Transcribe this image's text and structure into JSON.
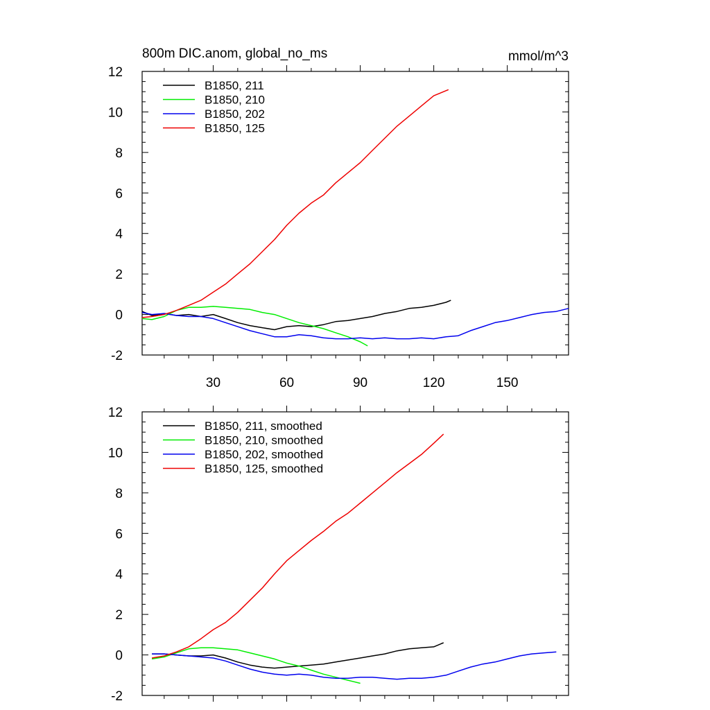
{
  "chart_data": [
    {
      "type": "line",
      "title_left": "800m DIC.anom, global_no_ms",
      "title_right": "mmol/m^3",
      "xlim": [
        1,
        175
      ],
      "ylim": [
        -2,
        12
      ],
      "xticks": [
        30,
        60,
        90,
        120,
        150
      ],
      "yticks": [
        -2,
        0,
        2,
        4,
        6,
        8,
        10,
        12
      ],
      "show_xtick_labels": true,
      "legend_position": "top-left",
      "series": [
        {
          "name": "B1850, 211",
          "color": "#000000",
          "x": [
            1,
            5,
            10,
            15,
            20,
            25,
            30,
            35,
            40,
            45,
            50,
            55,
            60,
            65,
            70,
            75,
            80,
            85,
            90,
            95,
            100,
            105,
            110,
            115,
            120,
            125,
            127
          ],
          "y": [
            0.15,
            -0.05,
            0.05,
            -0.05,
            0.0,
            -0.1,
            0.0,
            -0.2,
            -0.4,
            -0.55,
            -0.65,
            -0.75,
            -0.6,
            -0.55,
            -0.6,
            -0.5,
            -0.35,
            -0.3,
            -0.2,
            -0.1,
            0.05,
            0.15,
            0.3,
            0.35,
            0.45,
            0.6,
            0.7
          ]
        },
        {
          "name": "B1850, 210",
          "color": "#00ee00",
          "x": [
            1,
            5,
            10,
            15,
            20,
            25,
            30,
            35,
            40,
            45,
            50,
            55,
            60,
            65,
            70,
            75,
            80,
            85,
            90,
            93
          ],
          "y": [
            -0.2,
            -0.25,
            -0.1,
            0.2,
            0.35,
            0.35,
            0.4,
            0.35,
            0.3,
            0.25,
            0.1,
            0.0,
            -0.2,
            -0.4,
            -0.55,
            -0.7,
            -0.9,
            -1.1,
            -1.35,
            -1.55
          ]
        },
        {
          "name": "B1850, 202",
          "color": "#0000ee",
          "x": [
            1,
            5,
            10,
            15,
            20,
            25,
            30,
            35,
            40,
            45,
            50,
            55,
            60,
            65,
            70,
            75,
            80,
            85,
            90,
            95,
            100,
            105,
            110,
            115,
            120,
            125,
            130,
            135,
            140,
            145,
            150,
            155,
            160,
            165,
            170,
            175
          ],
          "y": [
            0.1,
            0.0,
            0.05,
            -0.05,
            -0.1,
            -0.1,
            -0.2,
            -0.4,
            -0.6,
            -0.8,
            -0.95,
            -1.1,
            -1.1,
            -1.0,
            -1.05,
            -1.15,
            -1.2,
            -1.2,
            -1.15,
            -1.2,
            -1.15,
            -1.2,
            -1.2,
            -1.15,
            -1.2,
            -1.1,
            -1.05,
            -0.8,
            -0.6,
            -0.4,
            -0.3,
            -0.15,
            0.0,
            0.1,
            0.15,
            0.3
          ]
        },
        {
          "name": "B1850, 125",
          "color": "#ee0000",
          "x": [
            1,
            5,
            10,
            15,
            20,
            25,
            30,
            35,
            40,
            45,
            50,
            55,
            60,
            65,
            70,
            75,
            80,
            85,
            90,
            95,
            100,
            105,
            110,
            115,
            120,
            126
          ],
          "y": [
            -0.15,
            -0.1,
            0.0,
            0.2,
            0.45,
            0.7,
            1.1,
            1.5,
            2.0,
            2.5,
            3.1,
            3.7,
            4.4,
            5.0,
            5.5,
            5.9,
            6.5,
            7.0,
            7.5,
            8.1,
            8.7,
            9.3,
            9.8,
            10.3,
            10.8,
            11.1
          ]
        }
      ]
    },
    {
      "type": "line",
      "xlim": [
        1,
        175
      ],
      "ylim": [
        -2,
        12
      ],
      "xticks": [
        30,
        60,
        90,
        120,
        150
      ],
      "yticks": [
        -2,
        0,
        2,
        4,
        6,
        8,
        10,
        12
      ],
      "show_xtick_labels": false,
      "legend_position": "top-left",
      "series": [
        {
          "name": "B1850, 211, smoothed",
          "color": "#000000",
          "x": [
            5,
            10,
            15,
            20,
            25,
            30,
            35,
            40,
            45,
            50,
            55,
            60,
            65,
            70,
            75,
            80,
            85,
            90,
            95,
            100,
            105,
            110,
            115,
            120,
            124
          ],
          "y": [
            0.05,
            0.05,
            0.0,
            -0.05,
            -0.05,
            0.0,
            -0.15,
            -0.35,
            -0.5,
            -0.6,
            -0.65,
            -0.6,
            -0.55,
            -0.5,
            -0.45,
            -0.35,
            -0.25,
            -0.15,
            -0.05,
            0.05,
            0.2,
            0.3,
            0.35,
            0.4,
            0.6
          ]
        },
        {
          "name": "B1850, 210, smoothed",
          "color": "#00ee00",
          "x": [
            5,
            10,
            15,
            20,
            25,
            30,
            35,
            40,
            45,
            50,
            55,
            60,
            65,
            70,
            75,
            80,
            85,
            90
          ],
          "y": [
            -0.2,
            -0.1,
            0.1,
            0.3,
            0.35,
            0.35,
            0.3,
            0.25,
            0.1,
            -0.05,
            -0.2,
            -0.4,
            -0.55,
            -0.75,
            -0.95,
            -1.1,
            -1.25,
            -1.4
          ]
        },
        {
          "name": "B1850, 202, smoothed",
          "color": "#0000ee",
          "x": [
            5,
            10,
            15,
            20,
            25,
            30,
            35,
            40,
            45,
            50,
            55,
            60,
            65,
            70,
            75,
            80,
            85,
            90,
            95,
            100,
            105,
            110,
            115,
            120,
            125,
            130,
            135,
            140,
            145,
            150,
            155,
            160,
            165,
            170
          ],
          "y": [
            0.05,
            0.05,
            0.0,
            -0.05,
            -0.1,
            -0.15,
            -0.3,
            -0.5,
            -0.7,
            -0.85,
            -0.95,
            -1.0,
            -0.95,
            -1.0,
            -1.1,
            -1.15,
            -1.15,
            -1.1,
            -1.1,
            -1.15,
            -1.2,
            -1.15,
            -1.15,
            -1.1,
            -1.0,
            -0.8,
            -0.6,
            -0.45,
            -0.35,
            -0.2,
            -0.05,
            0.05,
            0.1,
            0.15
          ]
        },
        {
          "name": "B1850, 125, smoothed",
          "color": "#ee0000",
          "x": [
            5,
            10,
            15,
            20,
            25,
            30,
            35,
            40,
            45,
            50,
            55,
            60,
            65,
            70,
            75,
            80,
            85,
            90,
            95,
            100,
            105,
            110,
            115,
            120,
            124
          ],
          "y": [
            -0.15,
            -0.05,
            0.15,
            0.4,
            0.8,
            1.25,
            1.6,
            2.1,
            2.7,
            3.3,
            4.0,
            4.65,
            5.15,
            5.65,
            6.1,
            6.6,
            7.0,
            7.5,
            8.0,
            8.5,
            9.0,
            9.45,
            9.9,
            10.45,
            10.9
          ]
        }
      ]
    }
  ]
}
